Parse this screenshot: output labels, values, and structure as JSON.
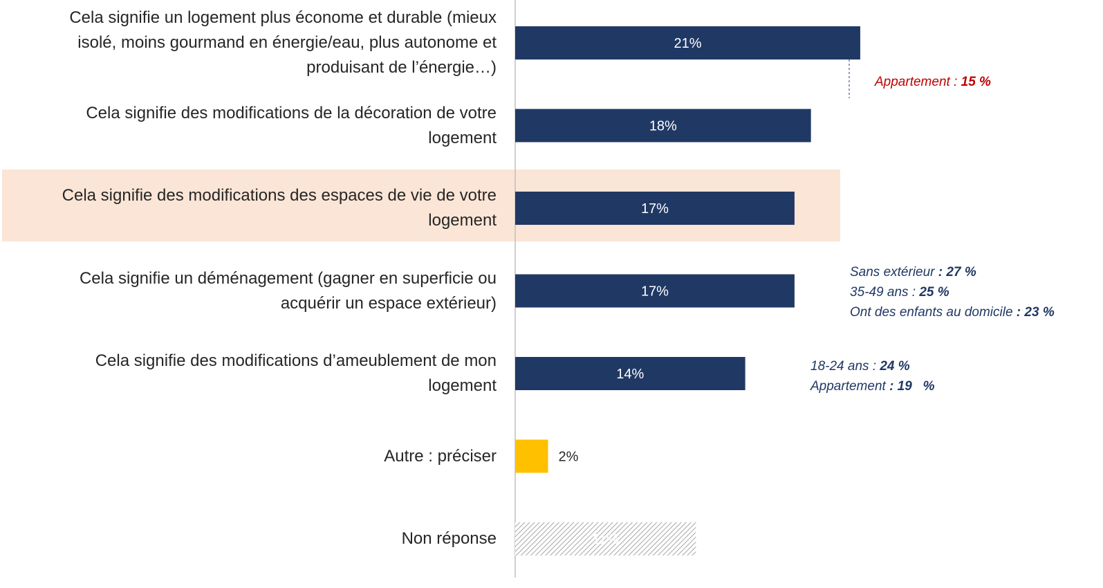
{
  "chart_data": {
    "type": "bar",
    "orientation": "horizontal",
    "categories": [
      "Cela signifie un logement plus économe et durable (mieux\nisolé, moins gourmand en énergie/eau, plus autonome et\nproduisant de l’énergie…)",
      "Cela signifie des modifications de la décoration de votre\nlogement",
      "Cela signifie des modifications des espaces de vie de votre\nlogement",
      "Cela signifie un déménagement (gagner en superficie ou\nacquérir un espace extérieur)",
      "Cela signifie des modifications d’ameublement de mon\nlogement",
      "Autre : préciser",
      "Non réponse"
    ],
    "values": [
      21,
      18,
      17,
      17,
      14,
      2,
      11
    ],
    "value_labels": [
      "21%",
      "18%",
      "17%",
      "17%",
      "14%",
      "2%",
      "11%"
    ],
    "colors": [
      "#203864",
      "#203864",
      "#203864",
      "#203864",
      "#203864",
      "#ffc000",
      "#a6a6a6"
    ],
    "fill_styles": [
      "solid",
      "solid",
      "solid",
      "solid",
      "solid",
      "solid",
      "hatch"
    ],
    "highlight_row": 2,
    "annotations": [
      {
        "bar": 0,
        "color": "#c00000",
        "lines": [
          {
            "text": "Appartement : ",
            "bold": "15 %"
          }
        ]
      },
      {
        "bar": 3,
        "color": "#203864",
        "lines": [
          {
            "text": "Sans extérieur",
            "bold": " : 27 %"
          },
          {
            "text": "35-49 ans : ",
            "bold": "25 %"
          },
          {
            "text": "Ont des enfants au domicile",
            "bold": " : 23 %"
          }
        ]
      },
      {
        "bar": 4,
        "color": "#203864",
        "lines": [
          {
            "text": "18-24 ans : ",
            "bold": "24 %"
          },
          {
            "text": "Appartement",
            "bold": " : 19   %"
          }
        ]
      }
    ]
  }
}
